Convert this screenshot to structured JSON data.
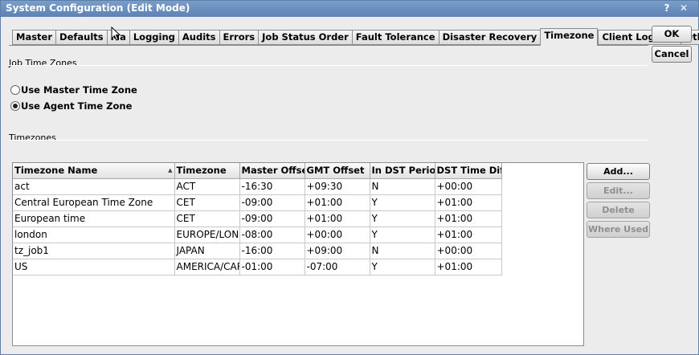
{
  "window": {
    "title": "System Configuration (Edit Mode)",
    "help_glyph": "?",
    "close_glyph": "✕"
  },
  "tabs": [
    {
      "label": "Master",
      "active": false
    },
    {
      "label": "Defaults",
      "active": false
    },
    {
      "label": "Ma",
      "active": false
    },
    {
      "label": "Logging",
      "active": false
    },
    {
      "label": "Audits",
      "active": false
    },
    {
      "label": "Errors",
      "active": false
    },
    {
      "label": "Job Status Order",
      "active": false
    },
    {
      "label": "Fault Tolerance",
      "active": false
    },
    {
      "label": "Disaster Recovery",
      "active": false
    },
    {
      "label": "Timezone",
      "active": true
    },
    {
      "label": "Client Logging",
      "active": false
    },
    {
      "label": "Other",
      "active": false
    }
  ],
  "buttons": {
    "ok": "OK",
    "cancel": "Cancel",
    "add": "Add...",
    "edit": "Edit...",
    "delete": "Delete",
    "where_used": "Where Used"
  },
  "job_time_zones": {
    "label": "Job Time Zones",
    "options": [
      {
        "label": "Use Master Time Zone",
        "selected": false
      },
      {
        "label": "Use Agent Time Zone",
        "selected": true
      }
    ]
  },
  "timezones": {
    "label": "Timezones",
    "sort_glyph": "▲",
    "columns": [
      "Timezone Name",
      "Timezone",
      "Master Offset",
      "GMT Offset",
      "In DST Period",
      "DST Time Diff"
    ],
    "rows": [
      [
        "act",
        "ACT",
        "-16:30",
        "+09:30",
        "N",
        "+00:00"
      ],
      [
        "Central European Time Zone",
        "CET",
        "-09:00",
        "+01:00",
        "Y",
        "+01:00"
      ],
      [
        "European time",
        "CET",
        "-09:00",
        "+01:00",
        "Y",
        "+01:00"
      ],
      [
        "london",
        "EUROPE/LONDON",
        "-08:00",
        "+00:00",
        "Y",
        "+01:00"
      ],
      [
        "tz_job1",
        "JAPAN",
        "-16:00",
        "+09:00",
        "N",
        "+00:00"
      ],
      [
        "US",
        "AMERICA/CARACAS",
        "-01:00",
        "-07:00",
        "Y",
        "+01:00"
      ]
    ]
  }
}
